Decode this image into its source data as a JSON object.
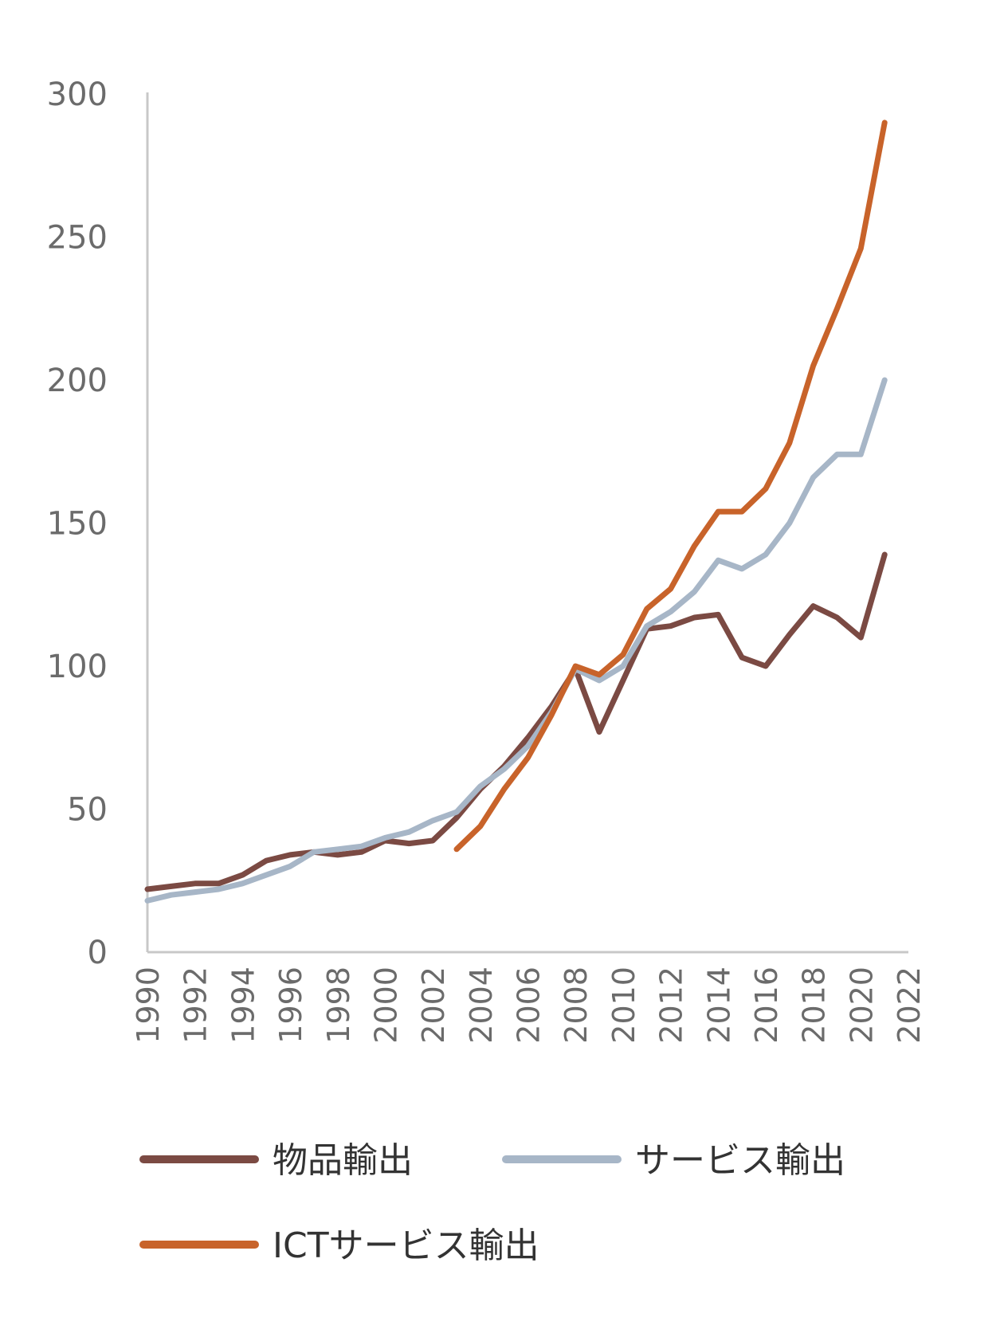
{
  "chart_data": {
    "type": "line",
    "title": "",
    "xlabel": "",
    "ylabel": "",
    "ylim": [
      0,
      300
    ],
    "yticks": [
      0,
      50,
      100,
      150,
      200,
      250,
      300
    ],
    "xlim": [
      1990,
      2022
    ],
    "xticks": [
      1990,
      1992,
      1994,
      1996,
      1998,
      2000,
      2002,
      2004,
      2006,
      2008,
      2010,
      2012,
      2014,
      2016,
      2018,
      2020,
      2022
    ],
    "grid": false,
    "legend_position": "bottom",
    "series": [
      {
        "name": "物品輸出",
        "color": "#7b4a43",
        "x": [
          1990,
          1991,
          1992,
          1993,
          1994,
          1995,
          1996,
          1997,
          1998,
          1999,
          2000,
          2001,
          2002,
          2003,
          2004,
          2005,
          2006,
          2007,
          2008,
          2009,
          2010,
          2011,
          2012,
          2013,
          2014,
          2015,
          2016,
          2017,
          2018,
          2019,
          2020,
          2021
        ],
        "values": [
          22,
          23,
          24,
          24,
          27,
          32,
          34,
          35,
          34,
          35,
          39,
          38,
          39,
          47,
          57,
          65,
          75,
          86,
          99,
          77,
          95,
          113,
          114,
          117,
          118,
          103,
          100,
          111,
          121,
          117,
          110,
          139
        ]
      },
      {
        "name": "サービス輸出",
        "color": "#a7b6c7",
        "x": [
          1990,
          1991,
          1992,
          1993,
          1994,
          1995,
          1996,
          1997,
          1998,
          1999,
          2000,
          2001,
          2002,
          2003,
          2004,
          2005,
          2006,
          2007,
          2008,
          2009,
          2010,
          2011,
          2012,
          2013,
          2014,
          2015,
          2016,
          2017,
          2018,
          2019,
          2020,
          2021
        ],
        "values": [
          18,
          20,
          21,
          22,
          24,
          27,
          30,
          35,
          36,
          37,
          40,
          42,
          46,
          49,
          58,
          64,
          72,
          84,
          99,
          95,
          100,
          114,
          119,
          126,
          137,
          134,
          139,
          150,
          166,
          174,
          174,
          200
        ]
      },
      {
        "name": "ICTサービス輸出",
        "color": "#c8632a",
        "x": [
          2003,
          2004,
          2005,
          2006,
          2007,
          2008,
          2009,
          2010,
          2011,
          2012,
          2013,
          2014,
          2015,
          2016,
          2017,
          2018,
          2019,
          2020,
          2021
        ],
        "values": [
          36,
          44,
          57,
          68,
          83,
          100,
          97,
          104,
          120,
          127,
          142,
          154,
          154,
          162,
          178,
          205,
          225,
          246,
          290
        ]
      }
    ]
  }
}
